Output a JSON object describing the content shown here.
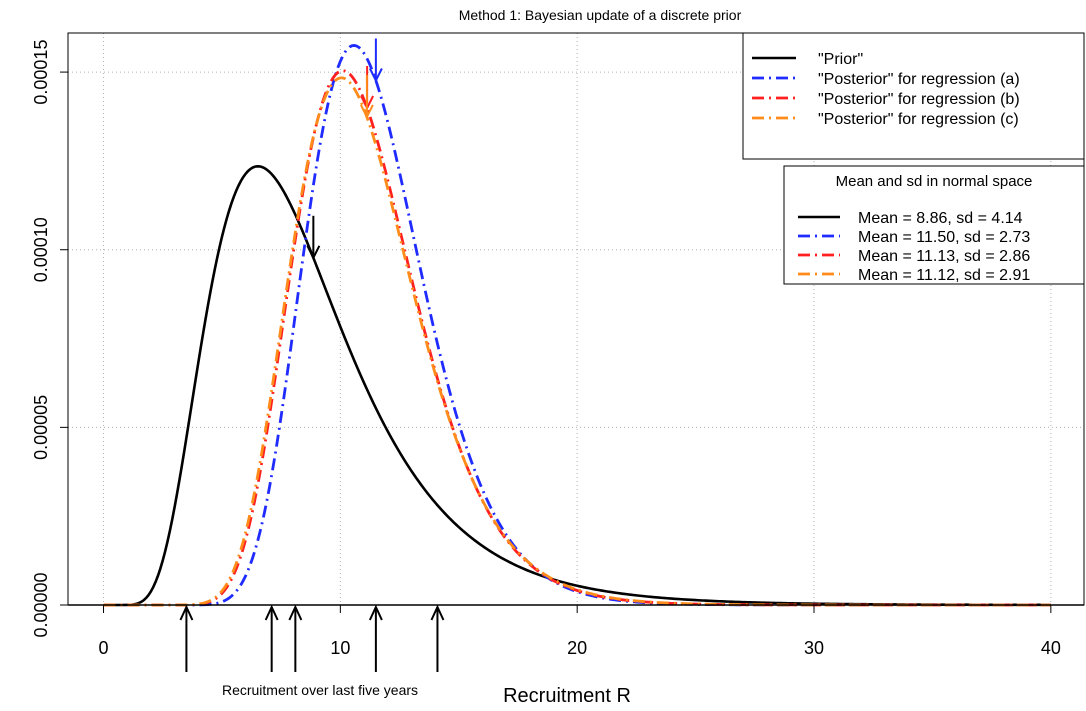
{
  "chart_data": {
    "type": "line",
    "title": "Method 1: Bayesian update of a discrete prior",
    "xlabel": "Recruitment R",
    "ylabel": "",
    "xlim": [
      -1.5,
      41.4
    ],
    "ylim": [
      0,
      0.000161
    ],
    "x_ticks": [
      0,
      10,
      20,
      30,
      40
    ],
    "x_tick_labels": [
      "0",
      "10",
      "20",
      "30",
      "40"
    ],
    "y_ticks": [
      0,
      5e-05,
      0.0001,
      0.00015
    ],
    "y_tick_labels": [
      "0.00000",
      "0.00005",
      "0.00010",
      "0.00015"
    ],
    "grid": true,
    "series": [
      {
        "name": "\"Prior\"",
        "color": "#000000",
        "dash": "solid",
        "lognormal_mu": 2.0758,
        "lognormal_sigma": 0.4481,
        "scale": 0.001,
        "marker_x": 8.86
      },
      {
        "name": "\"Posterior\" for regression (a)",
        "color": "#1f2bff",
        "dash": "dashdot",
        "lognormal_mu": 2.4128,
        "lognormal_sigma": 0.2331,
        "scale": 0.001,
        "marker_x": 11.5
      },
      {
        "name": "\"Posterior\" for regression (b)",
        "color": "#ff2020",
        "dash": "dashdot",
        "lognormal_mu": 2.3776,
        "lognormal_sigma": 0.2542,
        "scale": 0.001,
        "marker_x": 11.13
      },
      {
        "name": "\"Posterior\" for regression (c)",
        "color": "#ff8c1a",
        "dash": "dashdot",
        "lognormal_mu": 2.3741,
        "lognormal_sigma": 0.2588,
        "scale": 0.001,
        "marker_x": 11.12
      }
    ],
    "observations": [
      3.5,
      7.1,
      8.1,
      11.5,
      14.1
    ],
    "observation_label": "Recruitment over last five years",
    "legend_position": "top-right",
    "legend_labels": [
      "\"Prior\"",
      "\"Posterior\" for regression (a)",
      "\"Posterior\" for regression (b)",
      "\"Posterior\" for regression (c)"
    ],
    "stats_legend": {
      "title": "Mean and sd in normal space",
      "entries": [
        "Mean = 8.86, sd = 4.14",
        "Mean = 11.50, sd = 2.73",
        "Mean = 11.13, sd = 2.86",
        "Mean = 11.12, sd = 2.91"
      ]
    }
  }
}
